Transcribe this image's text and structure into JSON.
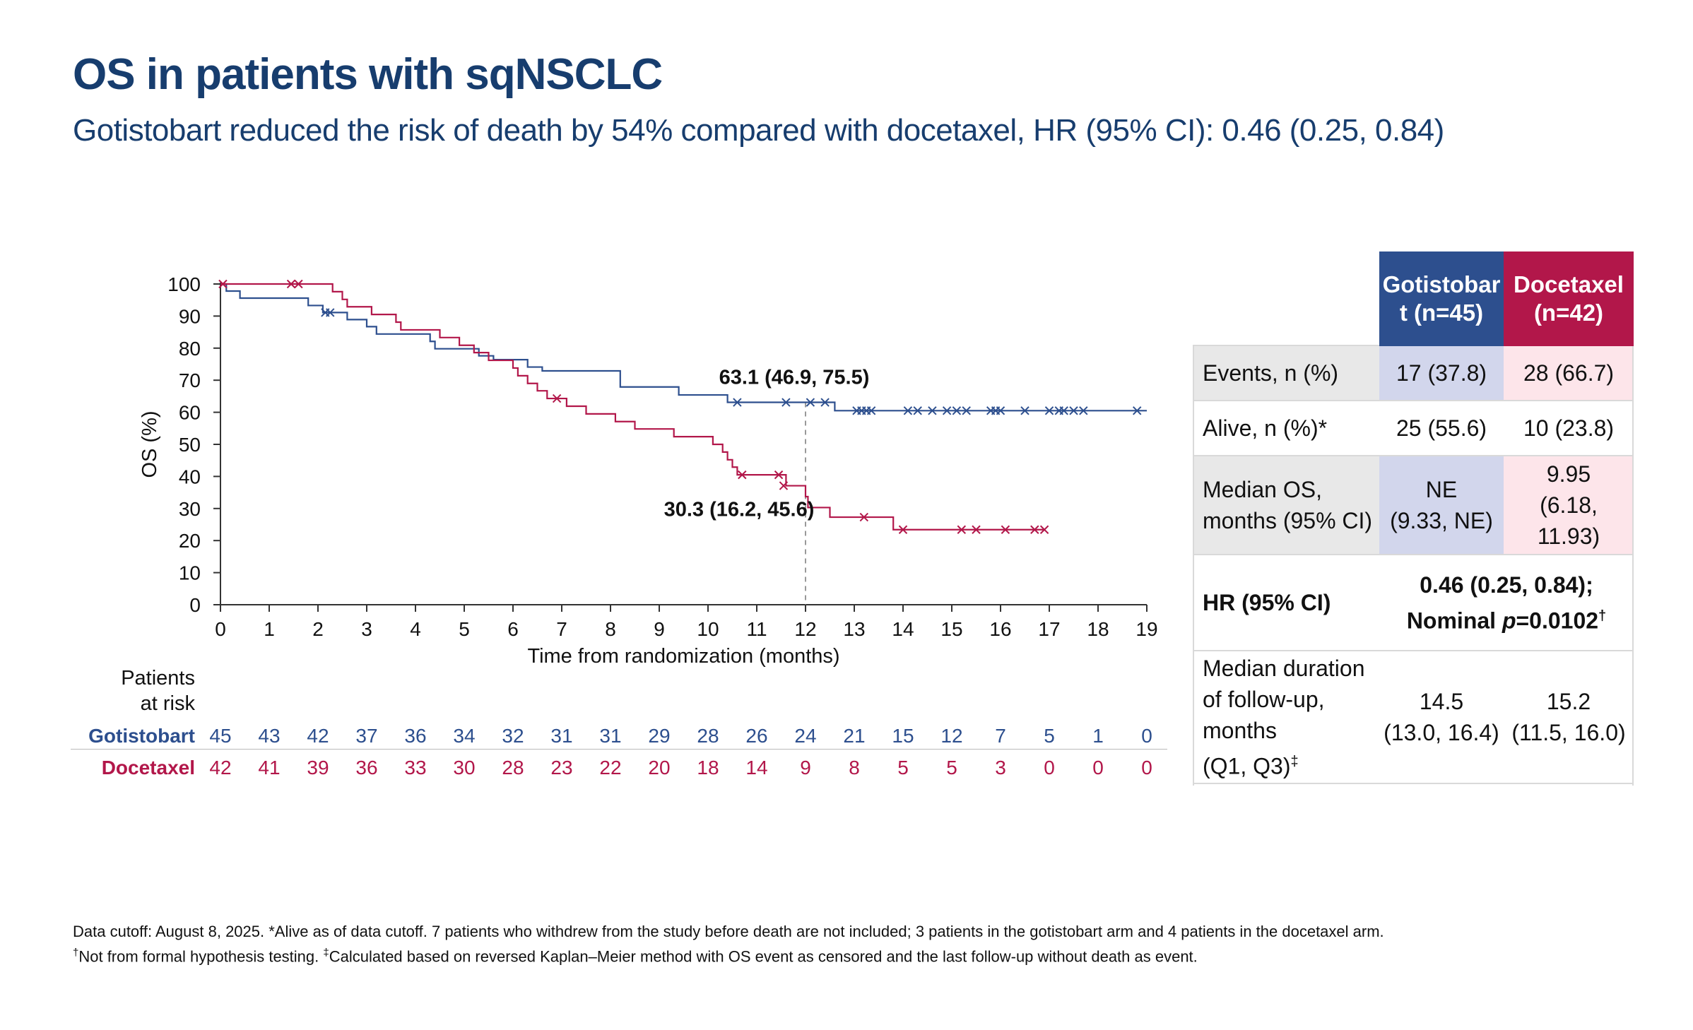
{
  "header": {
    "title": "OS in patients with sqNSCLC",
    "subtitle": "Gotistobart reduced the risk of death by 54% compared with docetaxel, HR (95% CI): 0.46 (0.25, 0.84)"
  },
  "colors": {
    "gotistobart": "#2d4f8e",
    "docetaxel": "#b2174a",
    "gotistobart_annot": "#1f3a67"
  },
  "chart_data": {
    "type": "line",
    "title": "",
    "xlabel": "Time from randomization (months)",
    "ylabel": "OS (%)",
    "xlim": [
      0,
      19
    ],
    "ylim": [
      0,
      100
    ],
    "x_ticks": [
      0,
      1,
      2,
      3,
      4,
      5,
      6,
      7,
      8,
      9,
      10,
      11,
      12,
      13,
      14,
      15,
      16,
      17,
      18,
      19
    ],
    "y_ticks": [
      0,
      10,
      20,
      30,
      40,
      50,
      60,
      70,
      80,
      90,
      100
    ],
    "reference_line_x": 12,
    "series": [
      {
        "name": "Gotistobart",
        "step": [
          [
            0,
            100
          ],
          [
            0.12,
            97.8
          ],
          [
            0.4,
            95.6
          ],
          [
            1.8,
            93.3
          ],
          [
            2.1,
            91.1
          ],
          [
            2.6,
            88.9
          ],
          [
            3,
            86.7
          ],
          [
            3.2,
            84.4
          ],
          [
            4.3,
            82.1
          ],
          [
            4.4,
            79.8
          ],
          [
            5.3,
            77.6
          ],
          [
            5.6,
            76.4
          ],
          [
            6.3,
            74.1
          ],
          [
            6.6,
            72.9
          ],
          [
            8.2,
            67.9
          ],
          [
            9.4,
            65.4
          ],
          [
            10.4,
            63.1
          ],
          [
            12.6,
            60.5
          ],
          [
            19,
            60.5
          ]
        ],
        "censored": [
          [
            2.15,
            91.1
          ],
          [
            2.25,
            91.1
          ],
          [
            10.6,
            63.1
          ],
          [
            11.6,
            63.1
          ],
          [
            12.1,
            63.1
          ],
          [
            12.4,
            63.1
          ],
          [
            13.05,
            60.5
          ],
          [
            13.15,
            60.5
          ],
          [
            13.25,
            60.5
          ],
          [
            13.35,
            60.5
          ],
          [
            14.1,
            60.5
          ],
          [
            14.3,
            60.5
          ],
          [
            14.6,
            60.5
          ],
          [
            14.9,
            60.5
          ],
          [
            15.1,
            60.5
          ],
          [
            15.3,
            60.5
          ],
          [
            15.8,
            60.5
          ],
          [
            15.9,
            60.5
          ],
          [
            16.0,
            60.5
          ],
          [
            16.5,
            60.5
          ],
          [
            17.0,
            60.5
          ],
          [
            17.2,
            60.5
          ],
          [
            17.3,
            60.5
          ],
          [
            17.5,
            60.5
          ],
          [
            17.7,
            60.5
          ],
          [
            18.8,
            60.5
          ]
        ]
      },
      {
        "name": "Docetaxel",
        "step": [
          [
            0,
            100
          ],
          [
            2.3,
            97.6
          ],
          [
            2.5,
            95.2
          ],
          [
            2.6,
            92.9
          ],
          [
            3.1,
            90.5
          ],
          [
            3.6,
            88.1
          ],
          [
            3.7,
            85.7
          ],
          [
            4.5,
            83.3
          ],
          [
            4.9,
            80.9
          ],
          [
            5.2,
            78.6
          ],
          [
            5.5,
            76.2
          ],
          [
            6,
            73.8
          ],
          [
            6.1,
            71.4
          ],
          [
            6.3,
            69
          ],
          [
            6.5,
            66.7
          ],
          [
            6.7,
            64.3
          ],
          [
            7.1,
            61.9
          ],
          [
            7.5,
            59.5
          ],
          [
            8.1,
            57.1
          ],
          [
            8.5,
            54.8
          ],
          [
            9.3,
            52.4
          ],
          [
            10.1,
            50
          ],
          [
            10.3,
            47.6
          ],
          [
            10.4,
            45.2
          ],
          [
            10.5,
            42.9
          ],
          [
            10.6,
            40.5
          ],
          [
            11.6,
            37.1
          ],
          [
            12,
            33.7
          ],
          [
            12.05,
            30.3
          ],
          [
            12.3,
            30.3
          ],
          [
            12.5,
            27.3
          ],
          [
            13.8,
            23.4
          ],
          [
            16.9,
            23.4
          ]
        ],
        "censored": [
          [
            0.05,
            100
          ],
          [
            1.45,
            100
          ],
          [
            1.6,
            100
          ],
          [
            6.9,
            64.3
          ],
          [
            10.7,
            40.5
          ],
          [
            11.45,
            40.5
          ],
          [
            11.55,
            37.1
          ],
          [
            13.2,
            27.3
          ],
          [
            14,
            23.4
          ],
          [
            15.2,
            23.4
          ],
          [
            15.5,
            23.4
          ],
          [
            16.1,
            23.4
          ],
          [
            16.7,
            23.4
          ],
          [
            16.9,
            23.4
          ]
        ]
      }
    ],
    "annotations": [
      {
        "series": "Gotistobart",
        "text": "63.1 (46.9, 75.5)",
        "x": 12,
        "y": 63.1
      },
      {
        "series": "Docetaxel",
        "text": "30.3 (16.2, 45.6)",
        "x": 12,
        "y": 30.3
      }
    ],
    "at_risk": {
      "title_line1": "Patients",
      "title_line2": "at risk",
      "rows": [
        {
          "label": "Gotistobart",
          "values": [
            45,
            43,
            42,
            37,
            36,
            34,
            32,
            31,
            31,
            29,
            28,
            26,
            24,
            21,
            15,
            12,
            7,
            5,
            1,
            0
          ]
        },
        {
          "label": "Docetaxel",
          "values": [
            42,
            41,
            39,
            36,
            33,
            30,
            28,
            23,
            22,
            20,
            18,
            14,
            9,
            8,
            5,
            5,
            3,
            0,
            0,
            0
          ]
        }
      ]
    }
  },
  "table": {
    "col1_header": "Gotistobar t (n=45)",
    "col2_header": "Docetaxel (n=42)",
    "events": {
      "label": "Events, n (%)",
      "v1": "17 (37.8)",
      "v2": "28 (66.7)"
    },
    "alive": {
      "label": "Alive, n (%)*",
      "v1": "25 (55.6)",
      "v2": "10 (23.8)"
    },
    "median_os": {
      "label_1": "Median OS,",
      "label_2": "months (95% CI)",
      "v1_1": "NE",
      "v1_2": "(9.33, NE)",
      "v2_1": "9.95",
      "v2_2": "(6.18,",
      "v2_3": "11.93)"
    },
    "hr": {
      "label": "HR (95% CI)",
      "line1": "0.46 (0.25, 0.84);",
      "line2_prefix": "Nominal ",
      "line2_p": "p",
      "line2_value": "=0.0102",
      "line2_sup": "†"
    },
    "followup": {
      "label_1": "Median duration",
      "label_2": "of follow-up,",
      "label_3": "months",
      "label_4": "(Q1, Q3)",
      "label_sup": "‡",
      "v1_1": "14.5",
      "v1_2": "(13.0, 16.4)",
      "v2_1": "15.2",
      "v2_2": "(11.5, 16.0)"
    }
  },
  "footnotes": {
    "line1": "Data cutoff: August 8, 2025. *Alive as of data cutoff. 7 patients who withdrew from the study before death are not included; 3 patients in the gotistobart arm and 4 patients in the docetaxel arm.",
    "line2_sup1": "†",
    "line2_a": "Not from formal hypothesis testing. ",
    "line2_sup2": "‡",
    "line2_b": "Calculated based on reversed Kaplan–Meier method with OS event as censored and the last follow-up without death as event."
  }
}
